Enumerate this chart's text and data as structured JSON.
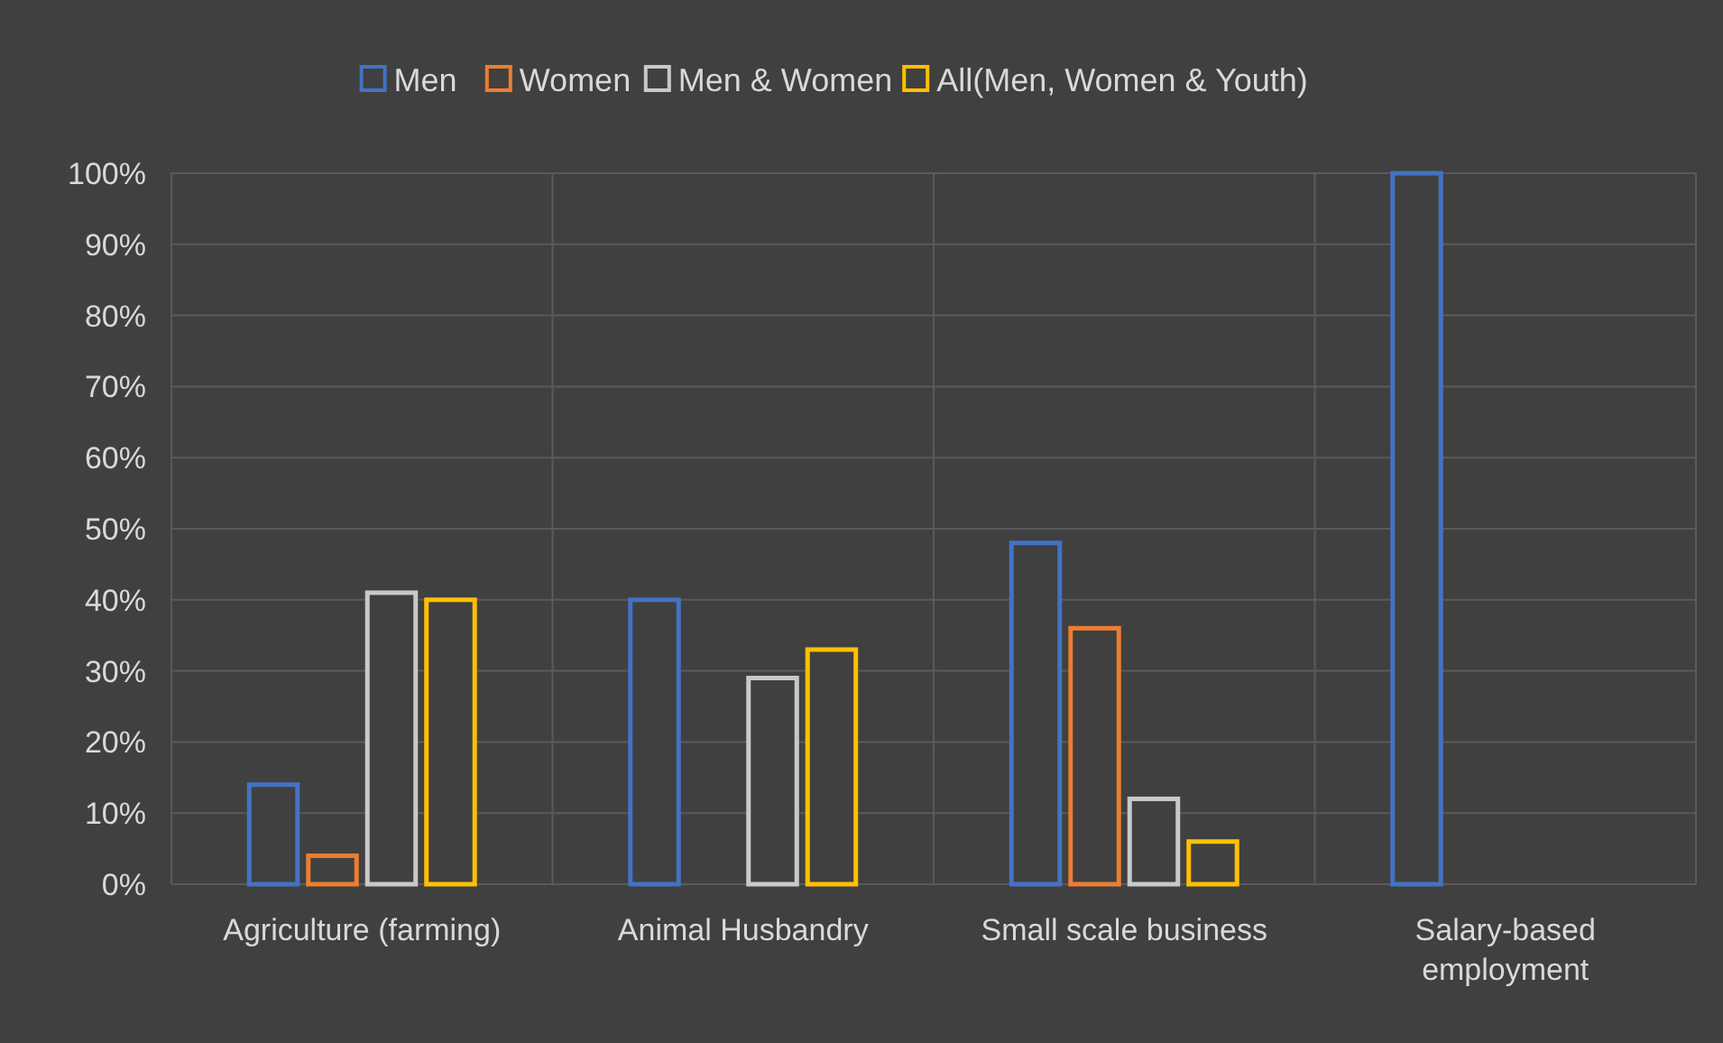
{
  "chart_data": {
    "type": "bar",
    "categories": [
      "Agriculture (farming)",
      "Animal Husbandry",
      "Small scale business",
      "Salary-based employment"
    ],
    "series": [
      {
        "name": "Men",
        "color": "#4472c4",
        "values": [
          14,
          40,
          48,
          100
        ]
      },
      {
        "name": "Women",
        "color": "#ed7d31",
        "values": [
          4,
          null,
          36,
          null
        ]
      },
      {
        "name": "Men & Women",
        "color": "#c9c9c9",
        "values": [
          41,
          29,
          12,
          null
        ]
      },
      {
        "name": "All(Men, Women & Youth)",
        "color": "#ffc000",
        "values": [
          40,
          33,
          6,
          null
        ]
      }
    ],
    "ylim": [
      0,
      100
    ],
    "yticks": [
      {
        "value": 0,
        "label": "0%"
      },
      {
        "value": 10,
        "label": "10%"
      },
      {
        "value": 20,
        "label": "20%"
      },
      {
        "value": 30,
        "label": "30%"
      },
      {
        "value": 40,
        "label": "40%"
      },
      {
        "value": 50,
        "label": "50%"
      },
      {
        "value": 60,
        "label": "60%"
      },
      {
        "value": 70,
        "label": "70%"
      },
      {
        "value": 80,
        "label": "80%"
      },
      {
        "value": 90,
        "label": "90%"
      },
      {
        "value": 100,
        "label": "100%"
      }
    ],
    "grid": true,
    "legend": "top"
  }
}
